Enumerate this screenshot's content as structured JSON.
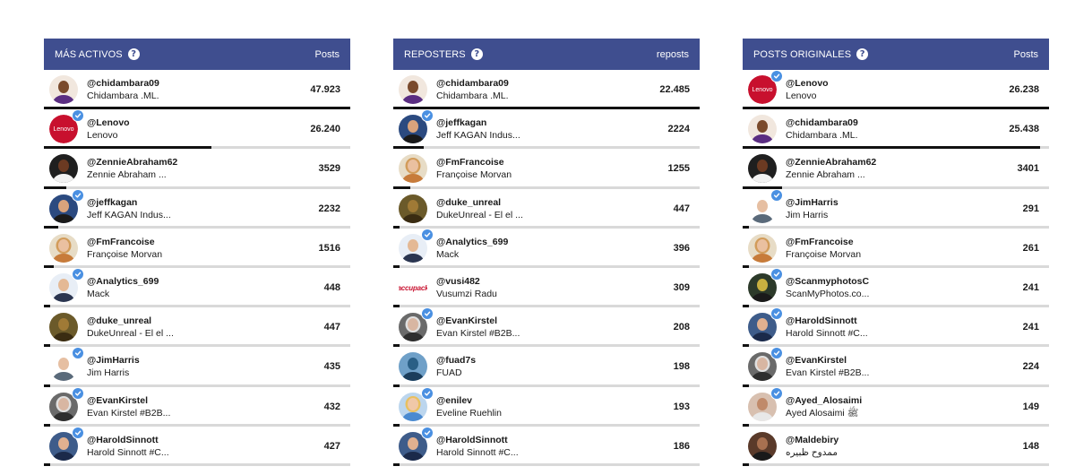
{
  "colors": {
    "header": "#3f4e8f",
    "bar": "#111111",
    "track": "#d9d9d9",
    "verified": "#4a90e2"
  },
  "panels": [
    {
      "title": "MÁS ACTIVOS",
      "column": "Posts",
      "rows": [
        {
          "handle": "@chidambara09",
          "name": "Chidambara .ML.",
          "count": "47.923",
          "value": 47923,
          "avatar": "chidambara",
          "verified": false
        },
        {
          "handle": "@Lenovo",
          "name": "Lenovo",
          "count": "26.240",
          "value": 26240,
          "avatar": "lenovo",
          "verified": true
        },
        {
          "handle": "@ZennieAbraham62",
          "name": "Zennie Abraham ...",
          "count": "3529",
          "value": 3529,
          "avatar": "zennie",
          "verified": false
        },
        {
          "handle": "@jeffkagan",
          "name": "Jeff KAGAN Indus...",
          "count": "2232",
          "value": 2232,
          "avatar": "jeff",
          "verified": true
        },
        {
          "handle": "@FmFrancoise",
          "name": "Françoise Morvan",
          "count": "1516",
          "value": 1516,
          "avatar": "francoise",
          "verified": false
        },
        {
          "handle": "@Analytics_699",
          "name": "Mack",
          "count": "448",
          "value": 448,
          "avatar": "mack",
          "verified": true
        },
        {
          "handle": "@duke_unreal",
          "name": "DukeUnreal - El el ...",
          "count": "447",
          "value": 447,
          "avatar": "duke",
          "verified": false
        },
        {
          "handle": "@JimHarris",
          "name": "Jim Harris",
          "count": "435",
          "value": 435,
          "avatar": "jim",
          "verified": true
        },
        {
          "handle": "@EvanKirstel",
          "name": "Evan Kirstel #B2B...",
          "count": "432",
          "value": 432,
          "avatar": "evan",
          "verified": true
        },
        {
          "handle": "@HaroldSinnott",
          "name": "Harold Sinnott #C...",
          "count": "427",
          "value": 427,
          "avatar": "harold",
          "verified": true
        }
      ]
    },
    {
      "title": "REPOSTERS",
      "column": "reposts",
      "rows": [
        {
          "handle": "@chidambara09",
          "name": "Chidambara .ML.",
          "count": "22.485",
          "value": 22485,
          "avatar": "chidambara",
          "verified": false
        },
        {
          "handle": "@jeffkagan",
          "name": "Jeff KAGAN Indus...",
          "count": "2224",
          "value": 2224,
          "avatar": "jeff",
          "verified": true
        },
        {
          "handle": "@FmFrancoise",
          "name": "Françoise Morvan",
          "count": "1255",
          "value": 1255,
          "avatar": "francoise",
          "verified": false
        },
        {
          "handle": "@duke_unreal",
          "name": "DukeUnreal - El el ...",
          "count": "447",
          "value": 447,
          "avatar": "duke",
          "verified": false
        },
        {
          "handle": "@Analytics_699",
          "name": "Mack",
          "count": "396",
          "value": 396,
          "avatar": "mack",
          "verified": true
        },
        {
          "handle": "@vusi482",
          "name": "Vusumzi Radu",
          "count": "309",
          "value": 309,
          "avatar": "accupack",
          "verified": false,
          "logo_text": "accupack"
        },
        {
          "handle": "@EvanKirstel",
          "name": "Evan Kirstel #B2B...",
          "count": "208",
          "value": 208,
          "avatar": "evan",
          "verified": true
        },
        {
          "handle": "@fuad7s",
          "name": "FUAD",
          "count": "198",
          "value": 198,
          "avatar": "fuad",
          "verified": false
        },
        {
          "handle": "@enilev",
          "name": "Eveline Ruehlin",
          "count": "193",
          "value": 193,
          "avatar": "eveline",
          "verified": true
        },
        {
          "handle": "@HaroldSinnott",
          "name": "Harold Sinnott #C...",
          "count": "186",
          "value": 186,
          "avatar": "harold",
          "verified": true
        }
      ]
    },
    {
      "title": "POSTS ORIGINALES",
      "column": "Posts",
      "rows": [
        {
          "handle": "@Lenovo",
          "name": "Lenovo",
          "count": "26.238",
          "value": 26238,
          "avatar": "lenovo",
          "verified": true
        },
        {
          "handle": "@chidambara09",
          "name": "Chidambara .ML.",
          "count": "25.438",
          "value": 25438,
          "avatar": "chidambara",
          "verified": false
        },
        {
          "handle": "@ZennieAbraham62",
          "name": "Zennie Abraham ...",
          "count": "3401",
          "value": 3401,
          "avatar": "zennie",
          "verified": false
        },
        {
          "handle": "@JimHarris",
          "name": "Jim Harris",
          "count": "291",
          "value": 291,
          "avatar": "jim",
          "verified": true
        },
        {
          "handle": "@FmFrancoise",
          "name": "Françoise Morvan",
          "count": "261",
          "value": 261,
          "avatar": "francoise",
          "verified": false
        },
        {
          "handle": "@ScanmyphotosC",
          "name": "ScanMyPhotos.co...",
          "count": "241",
          "value": 241,
          "avatar": "scanmyphotos",
          "verified": true
        },
        {
          "handle": "@HaroldSinnott",
          "name": "Harold Sinnott #C...",
          "count": "241",
          "value": 241,
          "avatar": "harold",
          "verified": true
        },
        {
          "handle": "@EvanKirstel",
          "name": "Evan Kirstel #B2B...",
          "count": "224",
          "value": 224,
          "avatar": "evan",
          "verified": true
        },
        {
          "handle": "@Ayed_Alosaimi",
          "name": "Ayed Alosaimi ﷺ",
          "count": "149",
          "value": 149,
          "avatar": "ayed",
          "verified": true
        },
        {
          "handle": "@Maldebiry",
          "name": "ممدوح ظبيره",
          "count": "148",
          "value": 148,
          "avatar": "maldebiry",
          "verified": false
        }
      ]
    }
  ],
  "lenovo_logo_text": "Lenovo"
}
